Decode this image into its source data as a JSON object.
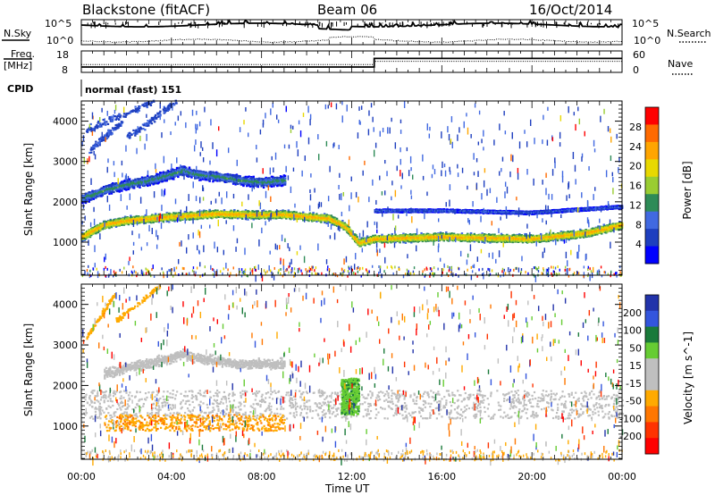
{
  "header": {
    "station": "Blackstone (fitACF)",
    "beam": "Beam 06",
    "date": "16/Oct/2014"
  },
  "noise_panel": {
    "left_label": "N.Sky",
    "right_label": "N.Search",
    "ticks": [
      "10^5",
      "10^0"
    ]
  },
  "freq_panel": {
    "left_label_1": "Freq.",
    "left_label_2": "[MHz]",
    "left_ticks": [
      "18",
      "8"
    ],
    "right_label": "Nave",
    "right_ticks": [
      "60",
      "0"
    ]
  },
  "cpid_panel": {
    "label": "CPID",
    "text": "normal (fast) 151"
  },
  "power_panel": {
    "ylabel": "Slant Range [km]",
    "yticks": [
      "4000",
      "3000",
      "2000",
      "1000"
    ],
    "colorbar_label": "Power [dB]",
    "colorbar_ticks": [
      "28",
      "24",
      "20",
      "16",
      "12",
      "8",
      "4"
    ],
    "colorbar_colors": [
      "#ff0000",
      "#ff6a00",
      "#ffa500",
      "#e8d800",
      "#9acd32",
      "#2e8b57",
      "#4169e1",
      "#1e3fbf",
      "#0000ff"
    ]
  },
  "velocity_panel": {
    "ylabel": "Slant Range [km]",
    "yticks": [
      "4000",
      "3000",
      "2000",
      "1000"
    ],
    "colorbar_label": "Velocity [m s^-1]",
    "colorbar_ticks": [
      "200",
      "100",
      "50",
      "15",
      "-15",
      "-50",
      "-100",
      "-200"
    ],
    "colorbar_colors": [
      "#2233aa",
      "#3355dd",
      "#1a7a3a",
      "#66cc33",
      "#bfbfbf",
      "#bfbfbf",
      "#ffaa00",
      "#ff7700",
      "#ff3300",
      "#ff0000"
    ]
  },
  "x_axis": {
    "label": "Time UT",
    "ticks": [
      "00:00",
      "04:00",
      "08:00",
      "12:00",
      "16:00",
      "20:00",
      "00:00"
    ]
  },
  "chart_data": {
    "type": "heatmap",
    "title": "Blackstone (fitACF) Beam 06 16/Oct/2014",
    "xlabel": "Time UT",
    "ylabel": "Slant Range [km]",
    "xlim_hours": [
      0,
      24
    ],
    "ylim_km": [
      180,
      4500
    ],
    "freq_mhz_steps": [
      {
        "from_h": 0,
        "to_h": 13,
        "value": 10.5
      },
      {
        "from_h": 13,
        "to_h": 24,
        "value": 14.5
      }
    ],
    "nave_steps": [
      {
        "from_h": 0,
        "to_h": 13,
        "value": 22
      },
      {
        "from_h": 13,
        "to_h": 24,
        "value": 31
      }
    ],
    "power_bands": [
      {
        "t": [
          0,
          0.5,
          1,
          2,
          4,
          5,
          6,
          7.5,
          9,
          10,
          11,
          11.7,
          12.3,
          13,
          16,
          20,
          22.5,
          24
        ],
        "r": [
          1150,
          1300,
          1450,
          1550,
          1650,
          1680,
          1720,
          1700,
          1700,
          1650,
          1600,
          1400,
          1000,
          1100,
          1150,
          1100,
          1250,
          1450
        ],
        "width_km": 250,
        "db": 24
      },
      {
        "t": [
          0,
          1,
          2,
          3,
          4,
          4.5,
          5,
          6,
          7,
          8,
          9
        ],
        "r": [
          2100,
          2300,
          2450,
          2550,
          2700,
          2800,
          2700,
          2650,
          2550,
          2500,
          2550
        ],
        "width_km": 350,
        "db": 14
      },
      {
        "t": [
          13,
          16,
          20,
          24
        ],
        "r": [
          1800,
          1800,
          1750,
          1900
        ],
        "width_km": 150,
        "db": 10
      }
    ],
    "velocity_notes": [
      {
        "feature": "ground scatter band",
        "t_range": [
          0,
          24
        ],
        "r_range": [
          1200,
          1900
        ],
        "velocity_ms": 0
      },
      {
        "feature": "ionospheric band",
        "t_range": [
          1,
          9
        ],
        "r_range": [
          900,
          1300
        ],
        "velocity_ms": -50
      },
      {
        "feature": "positive velocity feature",
        "t_range": [
          11.5,
          12.3
        ],
        "r_range": [
          1300,
          2200
        ],
        "velocity_ms": 50
      }
    ]
  }
}
